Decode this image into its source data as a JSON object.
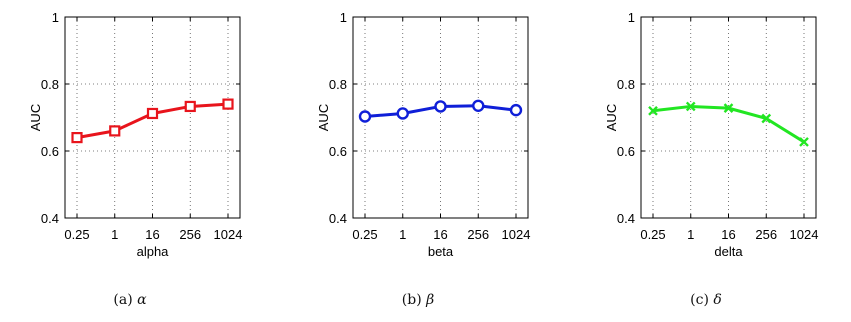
{
  "chart_data": [
    {
      "type": "line",
      "caption_prefix": "(a)",
      "caption_symbol": "α",
      "xlabel": "alpha",
      "ylabel": "AUC",
      "categories": [
        "0.25",
        "1",
        "16",
        "256",
        "1024"
      ],
      "yticks": [
        "0.4",
        "0.6",
        "0.8",
        "1"
      ],
      "ylim": [
        0.4,
        1.0
      ],
      "grid": true,
      "series": [
        {
          "values": [
            0.64,
            0.66,
            0.712,
            0.733,
            0.74
          ],
          "color": "#e8141c",
          "marker": "square"
        }
      ]
    },
    {
      "type": "line",
      "caption_prefix": "(b)",
      "caption_symbol": "β",
      "xlabel": "beta",
      "ylabel": "AUC",
      "categories": [
        "0.25",
        "1",
        "16",
        "256",
        "1024"
      ],
      "yticks": [
        "0.4",
        "0.6",
        "0.8",
        "1"
      ],
      "ylim": [
        0.4,
        1.0
      ],
      "grid": true,
      "series": [
        {
          "values": [
            0.703,
            0.712,
            0.733,
            0.735,
            0.722
          ],
          "color": "#0f1fd8",
          "marker": "circle"
        }
      ]
    },
    {
      "type": "line",
      "caption_prefix": "(c)",
      "caption_symbol": "δ",
      "xlabel": "delta",
      "ylabel": "AUC",
      "categories": [
        "0.25",
        "1",
        "16",
        "256",
        "1024"
      ],
      "yticks": [
        "0.4",
        "0.6",
        "0.8",
        "1"
      ],
      "ylim": [
        0.4,
        1.0
      ],
      "grid": true,
      "series": [
        {
          "values": [
            0.72,
            0.733,
            0.728,
            0.697,
            0.627
          ],
          "color": "#22e622",
          "marker": "x"
        }
      ]
    }
  ]
}
